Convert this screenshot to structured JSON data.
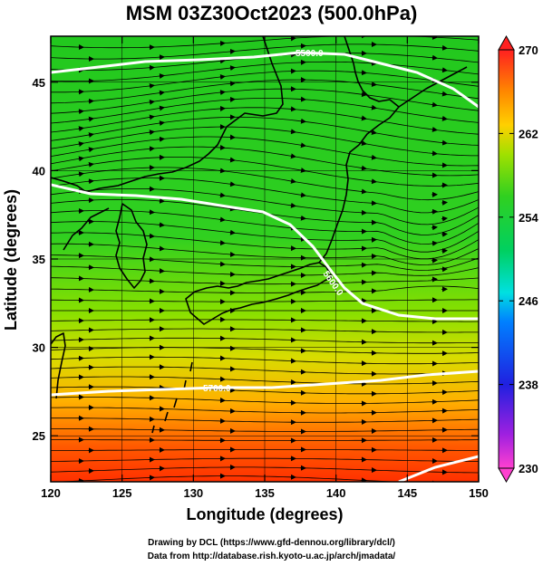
{
  "title": "MSM 03Z30Oct2023 (500.0hPa)",
  "map": {
    "xlabel": "Longitude (degrees)",
    "ylabel": "Latitude  (degrees)",
    "x_ticks": [
      "120",
      "125",
      "130",
      "135",
      "140",
      "145",
      "150"
    ],
    "y_ticks": [
      "25",
      "30",
      "35",
      "40",
      "45"
    ],
    "lon_range": [
      120,
      150
    ],
    "lat_range": [
      22.4,
      47.6
    ],
    "contour_labels": [
      "5700.0",
      "5600.0",
      "5500.0"
    ]
  },
  "colorbar": {
    "ticks": [
      "230",
      "238",
      "246",
      "254",
      "262",
      "270"
    ],
    "range": [
      230,
      270
    ],
    "colors": [
      "#e030c0",
      "#3030e0",
      "#00c8ff",
      "#00d060",
      "#22c022",
      "#88e000",
      "#ffd000",
      "#ff8800",
      "#ff3000",
      "#ff2020"
    ]
  },
  "credits": {
    "line1": "Drawing by DCL (https://www.gfd-dennou.org/library/dcl/)",
    "line2": "Data from http://database.rish.kyoto-u.ac.jp/arch/jmadata/"
  }
}
